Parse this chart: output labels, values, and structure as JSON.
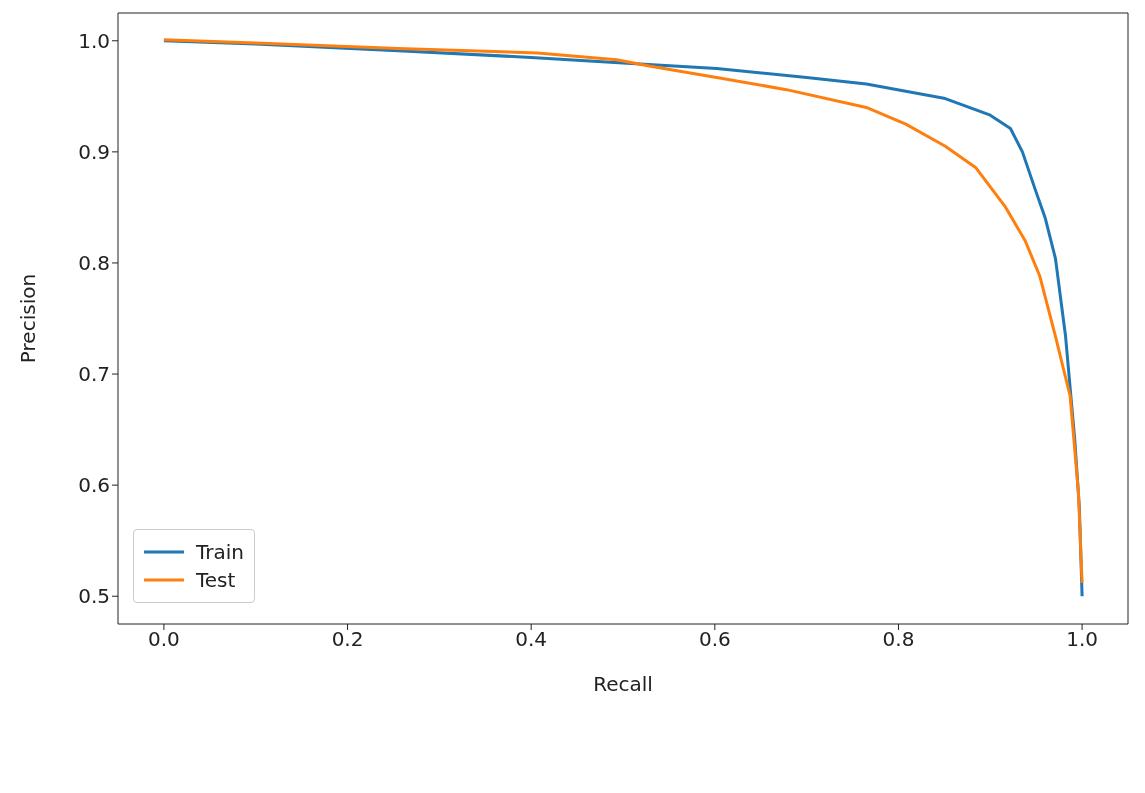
{
  "chart_data": {
    "type": "line",
    "xlabel": "Recall",
    "ylabel": "Precision",
    "xlim": [
      -0.05,
      1.05
    ],
    "ylim": [
      0.475,
      1.025
    ],
    "xticks": [
      {
        "value": 0,
        "label": "0.0"
      },
      0.2,
      0.4,
      0.6,
      0.8,
      {
        "value": 1,
        "label": "1.0"
      }
    ],
    "yticks": [
      0.5,
      0.6,
      0.7,
      0.8,
      0.9,
      {
        "value": 1,
        "label": "1.0"
      }
    ],
    "legend": "bottom left",
    "marker": "none",
    "line_style": "solid",
    "series": [
      {
        "name": "Train",
        "color": "#1f77b4",
        "x": [
          0,
          0.1,
          0.255,
          0.4,
          0.5,
          0.602,
          0.7,
          0.765,
          0.851,
          0.9,
          0.922,
          0.935,
          0.949,
          0.96,
          0.971,
          0.982,
          0.992,
          0.997,
          1
        ],
        "values": [
          1,
          0.997,
          0.991,
          0.985,
          0.98,
          0.975,
          0.967,
          0.961,
          0.948,
          0.933,
          0.921,
          0.9,
          0.866,
          0.84,
          0.804,
          0.734,
          0.641,
          0.58,
          0.5
        ]
      },
      {
        "name": "Test",
        "color": "#ff7f0e",
        "x": [
          0,
          0.1,
          0.255,
          0.407,
          0.493,
          0.53,
          0.602,
          0.678,
          0.765,
          0.808,
          0.851,
          0.884,
          0.916,
          0.938,
          0.954,
          0.971,
          0.987,
          0.996,
          1
        ],
        "values": [
          1.001,
          0.998,
          0.993,
          0.989,
          0.983,
          0.977,
          0.967,
          0.956,
          0.94,
          0.925,
          0.905,
          0.886,
          0.851,
          0.82,
          0.788,
          0.734,
          0.68,
          0.594,
          0.512
        ]
      }
    ]
  }
}
